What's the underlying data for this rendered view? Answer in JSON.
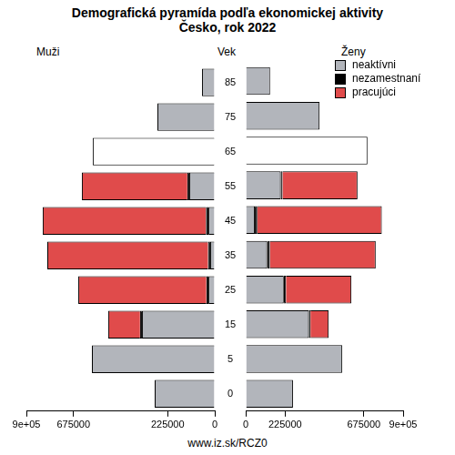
{
  "title": "Demografická pyramída podľa ekonomickej aktivity",
  "subtitle": "Česko, rok 2022",
  "y_label": "Vek",
  "source": "www.iz.sk/RCZ0",
  "chart_data": [
    {
      "type": "bar",
      "title": "Muži",
      "orientation": "horizontal",
      "stacked": true,
      "grid": false,
      "categories": [
        "0",
        "5",
        "15",
        "25",
        "35",
        "45",
        "55",
        "65",
        "75",
        "85"
      ],
      "xlim": [
        900000,
        0
      ],
      "xticks": [
        {
          "value": 900000,
          "label": "9e+05"
        },
        675000,
        225000,
        0
      ],
      "series": [
        {
          "name": "neaktívni",
          "color": "#b2b5bb",
          "colors": [
            "#b2b5bb",
            "#b2b5bb",
            "#b2b5bb",
            "#b2b5bb",
            "#b2b5bb",
            "#b2b5bb",
            "#b2b5bb",
            "#ffffff",
            "#b2b5bb",
            "#b2b5bb"
          ],
          "values": [
            287000,
            587000,
            348000,
            30000,
            22000,
            30000,
            122000,
            583000,
            274000,
            61000
          ]
        },
        {
          "name": "nezamestnaní",
          "color": "#000000",
          "values": [
            null,
            null,
            9000,
            10000,
            10000,
            12000,
            9000,
            null,
            null,
            null
          ]
        },
        {
          "name": "pracujúci",
          "color": "#e04b4b",
          "values": [
            null,
            null,
            152000,
            612000,
            768000,
            780000,
            504000,
            null,
            null,
            null
          ]
        }
      ]
    },
    {
      "type": "bar",
      "title": "Ženy",
      "orientation": "horizontal",
      "stacked": true,
      "grid": false,
      "legend": "top-right",
      "categories": [
        "0",
        "5",
        "15",
        "25",
        "35",
        "45",
        "55",
        "65",
        "75",
        "85"
      ],
      "xlim": [
        0,
        900000
      ],
      "xticks": [
        0,
        225000,
        675000,
        {
          "value": 900000,
          "label": "9e+05"
        }
      ],
      "series": [
        {
          "name": "neaktívni",
          "color": "#b2b5bb",
          "colors": [
            "#b2b5bb",
            "#b2b5bb",
            "#b2b5bb",
            "#b2b5bb",
            "#b2b5bb",
            "#b2b5bb",
            "#b2b5bb",
            "#ffffff",
            "#b2b5bb",
            "#b2b5bb"
          ],
          "values": [
            270000,
            552000,
            361000,
            217000,
            122000,
            52000,
            200000,
            696000,
            422000,
            139000
          ]
        },
        {
          "name": "nezamestnaní",
          "color": "#000000",
          "values": [
            null,
            null,
            9000,
            13000,
            16000,
            14000,
            10000,
            null,
            null,
            null
          ]
        },
        {
          "name": "pracujúci",
          "color": "#e04b4b",
          "values": [
            null,
            null,
            104000,
            374000,
            605000,
            712000,
            429000,
            null,
            null,
            null
          ]
        }
      ]
    }
  ]
}
